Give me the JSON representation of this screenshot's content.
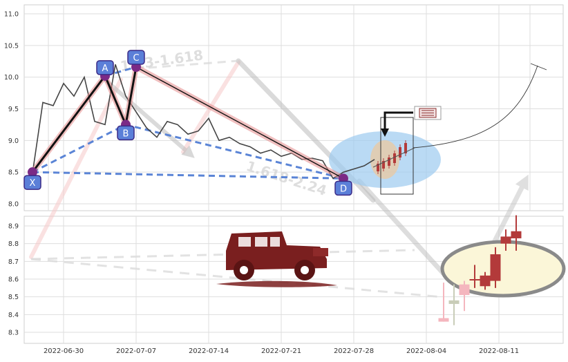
{
  "chart_data": [
    {
      "type": "line",
      "panel": "top",
      "grid": true,
      "ylim": [
        7.9,
        11.1
      ],
      "y_ticks": [
        "8.0",
        "8.5",
        "9.0",
        "9.5",
        "10.0",
        "10.5",
        "11.0"
      ],
      "price_series": {
        "x": [
          "2022-06-27",
          "2022-06-28",
          "2022-06-29",
          "2022-06-30",
          "2022-07-01",
          "2022-07-02",
          "2022-07-03",
          "2022-07-04",
          "2022-07-05",
          "2022-07-06",
          "2022-07-07",
          "2022-07-08",
          "2022-07-09",
          "2022-07-10",
          "2022-07-11",
          "2022-07-12",
          "2022-07-13",
          "2022-07-14",
          "2022-07-15",
          "2022-07-16",
          "2022-07-17",
          "2022-07-18",
          "2022-07-19",
          "2022-07-20",
          "2022-07-21",
          "2022-07-22",
          "2022-07-23",
          "2022-07-24",
          "2022-07-25",
          "2022-07-26",
          "2022-07-27",
          "2022-07-28",
          "2022-07-29",
          "2022-07-30"
        ],
        "values": [
          8.48,
          9.6,
          9.55,
          9.9,
          9.7,
          10.0,
          9.3,
          9.25,
          10.2,
          9.7,
          9.45,
          9.2,
          9.05,
          9.3,
          9.25,
          9.1,
          9.15,
          9.35,
          9.0,
          9.05,
          8.95,
          8.9,
          8.8,
          8.85,
          8.75,
          8.8,
          8.7,
          8.72,
          8.68,
          8.4,
          8.5,
          8.55,
          8.6,
          8.7
        ]
      },
      "pattern_points": [
        {
          "label": "X",
          "date": "2022-06-27",
          "value": 8.5
        },
        {
          "label": "A",
          "date": "2022-07-04",
          "value": 10.02
        },
        {
          "label": "B",
          "date": "2022-07-06",
          "value": 9.25
        },
        {
          "label": "C",
          "date": "2022-07-07",
          "value": 10.16
        },
        {
          "label": "D",
          "date": "2022-07-27",
          "value": 8.4
        }
      ],
      "watermark_ratios": [
        "1.13-1.618",
        "1.618-2.24"
      ],
      "note_icon": "notebook-icon"
    },
    {
      "type": "candlestick",
      "panel": "bottom",
      "grid": true,
      "ylim": [
        8.25,
        9.0
      ],
      "y_ticks": [
        "8.3",
        "8.4",
        "8.5",
        "8.6",
        "8.7",
        "8.8",
        "8.9"
      ],
      "x_ticks": [
        "2022-06-30",
        "2022-07-07",
        "2022-07-14",
        "2022-07-21",
        "2022-07-28",
        "2022-08-04",
        "2022-08-11"
      ],
      "candles": [
        {
          "date": "2022-08-03",
          "open": 8.38,
          "close": 8.36,
          "high": 8.58,
          "low": 8.36,
          "color": "#f4b6be"
        },
        {
          "date": "2022-08-04",
          "open": 8.48,
          "close": 8.46,
          "high": 8.57,
          "low": 8.34,
          "color": "#c9cdb8"
        },
        {
          "date": "2022-08-05",
          "open": 8.51,
          "close": 8.57,
          "high": 8.59,
          "low": 8.42,
          "color": "#f4b6be"
        },
        {
          "date": "2022-08-06",
          "open": 8.6,
          "close": 8.6,
          "high": 8.68,
          "low": 8.55,
          "color": "#b33a3a"
        },
        {
          "date": "2022-08-07",
          "open": 8.56,
          "close": 8.62,
          "high": 8.64,
          "low": 8.54,
          "color": "#b33a3a"
        },
        {
          "date": "2022-08-08",
          "open": 8.59,
          "close": 8.74,
          "high": 8.78,
          "low": 8.55,
          "color": "#b33a3a"
        },
        {
          "date": "2022-08-09",
          "open": 8.8,
          "close": 8.84,
          "high": 8.88,
          "low": 8.76,
          "color": "#b33a3a"
        },
        {
          "date": "2022-08-10",
          "open": 8.83,
          "close": 8.87,
          "high": 8.96,
          "low": 8.76,
          "color": "#b33a3a"
        }
      ],
      "decoration_icon": "jeep-icon"
    }
  ]
}
